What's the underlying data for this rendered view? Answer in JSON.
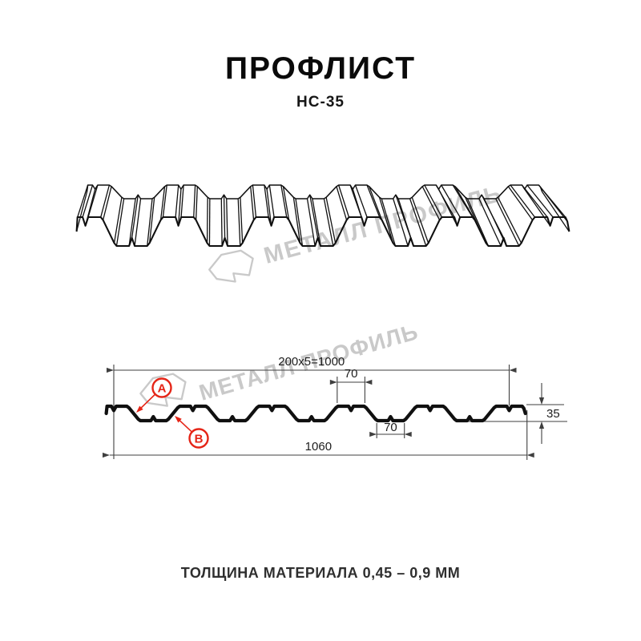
{
  "header": {
    "title": "ПРОФЛИСТ",
    "subtitle": "НС-35"
  },
  "watermark": {
    "text": "МЕТАЛЛ ПРОФИЛЬ"
  },
  "drawing": {
    "type": "technical-profile-diagram",
    "product": "НС-35",
    "profile_mm": {
      "module_width": 200,
      "modules": 5,
      "coverage_width": 1000,
      "overall_width": 1060,
      "height": 35,
      "crest_top_width": 70,
      "valley_bottom_width": 70
    }
  },
  "dimensions": {
    "coverage": "200x5=1000",
    "crest_top": "70",
    "valley_bottom": "70",
    "height": "35",
    "overall": "1060"
  },
  "annotations": {
    "a": "А",
    "b": "В"
  },
  "footer": {
    "text": "ТОЛЩИНА МАТЕРИАЛА 0,45 – 0,9 ММ"
  },
  "colors": {
    "accent_red": "#e52517",
    "line": "#101010",
    "dim_line": "#3f3f3f",
    "watermark": "#c9c9c9"
  }
}
